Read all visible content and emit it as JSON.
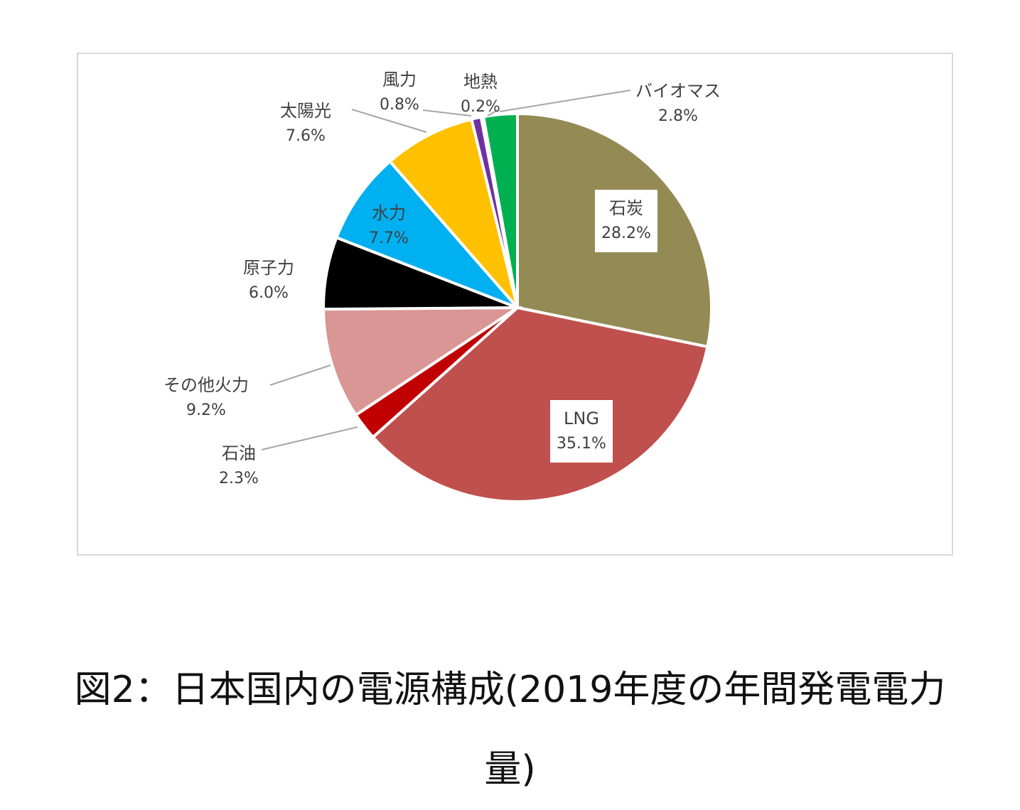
{
  "chart_data": {
    "type": "pie",
    "categories": [
      "石炭",
      "LNG",
      "石油",
      "その他火力",
      "原子力",
      "水力",
      "太陽光",
      "風力",
      "地熱",
      "バイオマス"
    ],
    "values": [
      28.2,
      35.1,
      2.3,
      9.2,
      6.0,
      7.7,
      7.6,
      0.8,
      0.2,
      2.8
    ],
    "value_labels": [
      "28.2%",
      "35.1%",
      "2.3%",
      "9.2%",
      "6.0%",
      "7.7%",
      "7.6%",
      "0.8%",
      "0.2%",
      "2.8%"
    ],
    "colors": [
      "#948a54",
      "#c0504d",
      "#c00000",
      "#d99694",
      "#000000",
      "#00b0f0",
      "#ffc000",
      "#7030a0",
      "#ffffff",
      "#00b050"
    ],
    "start_angle_deg": 0,
    "direction": "clockwise"
  },
  "caption": {
    "line1": "図2：日本国内の電源構成(2019年度の年間発電電力",
    "line2": "量)"
  }
}
